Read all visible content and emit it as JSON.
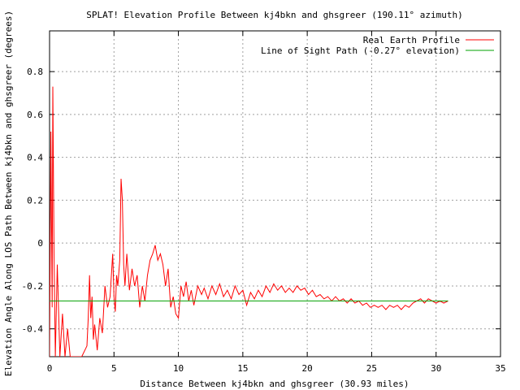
{
  "chart_data": {
    "type": "line",
    "title": "SPLAT! Elevation Profile Between kj4bkn and ghsgreer (190.11° azimuth)",
    "xlabel": "Distance Between kj4bkn and ghsgreer (30.93 miles)",
    "ylabel": "Elevation Angle Along LOS Path Between kj4bkn and ghsgreer (degrees)",
    "xlim": [
      0,
      35
    ],
    "ylim": [
      -0.53,
      0.99
    ],
    "x_ticks": [
      0,
      5,
      10,
      15,
      20,
      25,
      30,
      35
    ],
    "x_tick_labels": [
      "0",
      "5",
      "10",
      "15",
      "20",
      "25",
      "30",
      "35"
    ],
    "y_ticks": [
      -0.4,
      -0.2,
      0,
      0.2,
      0.4,
      0.6,
      0.8
    ],
    "y_tick_labels": [
      "-0.4",
      "-0.2",
      "0",
      "0.2",
      "0.4",
      "0.6",
      "0.8"
    ],
    "grid": true,
    "legend_position": "top-right",
    "series": [
      {
        "name": "Real Earth Profile",
        "color": "#ff0000",
        "points": [
          [
            0.0,
            -0.53
          ],
          [
            0.1,
            0.52
          ],
          [
            0.2,
            -0.3
          ],
          [
            0.25,
            0.73
          ],
          [
            0.35,
            -0.05
          ],
          [
            0.45,
            -0.53
          ],
          [
            0.6,
            -0.1
          ],
          [
            0.8,
            -0.53
          ],
          [
            1.0,
            -0.33
          ],
          [
            1.2,
            -0.53
          ],
          [
            1.4,
            -0.4
          ],
          [
            1.6,
            -0.53
          ],
          [
            2.0,
            -0.53
          ],
          [
            2.5,
            -0.53
          ],
          [
            2.9,
            -0.48
          ],
          [
            3.0,
            -0.35
          ],
          [
            3.1,
            -0.15
          ],
          [
            3.2,
            -0.35
          ],
          [
            3.3,
            -0.25
          ],
          [
            3.4,
            -0.45
          ],
          [
            3.5,
            -0.38
          ],
          [
            3.7,
            -0.5
          ],
          [
            3.9,
            -0.35
          ],
          [
            4.1,
            -0.42
          ],
          [
            4.3,
            -0.2
          ],
          [
            4.5,
            -0.3
          ],
          [
            4.7,
            -0.25
          ],
          [
            4.9,
            -0.05
          ],
          [
            5.0,
            -0.25
          ],
          [
            5.1,
            -0.32
          ],
          [
            5.2,
            -0.15
          ],
          [
            5.3,
            -0.2
          ],
          [
            5.45,
            -0.08
          ],
          [
            5.55,
            0.3
          ],
          [
            5.65,
            0.2
          ],
          [
            5.75,
            -0.1
          ],
          [
            5.85,
            -0.2
          ],
          [
            6.0,
            -0.05
          ],
          [
            6.2,
            -0.22
          ],
          [
            6.4,
            -0.12
          ],
          [
            6.6,
            -0.2
          ],
          [
            6.8,
            -0.15
          ],
          [
            7.0,
            -0.3
          ],
          [
            7.2,
            -0.2
          ],
          [
            7.4,
            -0.27
          ],
          [
            7.6,
            -0.15
          ],
          [
            7.8,
            -0.08
          ],
          [
            8.0,
            -0.05
          ],
          [
            8.2,
            -0.01
          ],
          [
            8.4,
            -0.08
          ],
          [
            8.6,
            -0.05
          ],
          [
            8.8,
            -0.1
          ],
          [
            9.0,
            -0.2
          ],
          [
            9.2,
            -0.12
          ],
          [
            9.4,
            -0.3
          ],
          [
            9.6,
            -0.25
          ],
          [
            9.8,
            -0.33
          ],
          [
            10.0,
            -0.35
          ],
          [
            10.2,
            -0.2
          ],
          [
            10.4,
            -0.25
          ],
          [
            10.6,
            -0.18
          ],
          [
            10.8,
            -0.27
          ],
          [
            11.0,
            -0.22
          ],
          [
            11.2,
            -0.29
          ],
          [
            11.5,
            -0.2
          ],
          [
            11.8,
            -0.24
          ],
          [
            12.0,
            -0.21
          ],
          [
            12.3,
            -0.26
          ],
          [
            12.6,
            -0.2
          ],
          [
            12.9,
            -0.24
          ],
          [
            13.2,
            -0.19
          ],
          [
            13.5,
            -0.25
          ],
          [
            13.8,
            -0.22
          ],
          [
            14.1,
            -0.26
          ],
          [
            14.4,
            -0.2
          ],
          [
            14.7,
            -0.24
          ],
          [
            15.0,
            -0.22
          ],
          [
            15.3,
            -0.29
          ],
          [
            15.6,
            -0.23
          ],
          [
            15.9,
            -0.26
          ],
          [
            16.2,
            -0.22
          ],
          [
            16.5,
            -0.25
          ],
          [
            16.8,
            -0.2
          ],
          [
            17.1,
            -0.23
          ],
          [
            17.4,
            -0.19
          ],
          [
            17.7,
            -0.22
          ],
          [
            18.0,
            -0.2
          ],
          [
            18.3,
            -0.23
          ],
          [
            18.6,
            -0.21
          ],
          [
            18.9,
            -0.23
          ],
          [
            19.2,
            -0.2
          ],
          [
            19.5,
            -0.22
          ],
          [
            19.8,
            -0.21
          ],
          [
            20.1,
            -0.24
          ],
          [
            20.4,
            -0.22
          ],
          [
            20.7,
            -0.25
          ],
          [
            21.0,
            -0.24
          ],
          [
            21.3,
            -0.26
          ],
          [
            21.6,
            -0.25
          ],
          [
            21.9,
            -0.27
          ],
          [
            22.2,
            -0.25
          ],
          [
            22.5,
            -0.27
          ],
          [
            22.8,
            -0.26
          ],
          [
            23.1,
            -0.28
          ],
          [
            23.4,
            -0.26
          ],
          [
            23.7,
            -0.28
          ],
          [
            24.0,
            -0.27
          ],
          [
            24.3,
            -0.29
          ],
          [
            24.6,
            -0.28
          ],
          [
            24.9,
            -0.3
          ],
          [
            25.2,
            -0.29
          ],
          [
            25.5,
            -0.3
          ],
          [
            25.8,
            -0.29
          ],
          [
            26.1,
            -0.31
          ],
          [
            26.4,
            -0.29
          ],
          [
            26.7,
            -0.3
          ],
          [
            27.0,
            -0.29
          ],
          [
            27.3,
            -0.31
          ],
          [
            27.6,
            -0.29
          ],
          [
            27.9,
            -0.3
          ],
          [
            28.2,
            -0.28
          ],
          [
            28.5,
            -0.27
          ],
          [
            28.8,
            -0.26
          ],
          [
            29.1,
            -0.28
          ],
          [
            29.4,
            -0.26
          ],
          [
            29.7,
            -0.27
          ],
          [
            30.0,
            -0.28
          ],
          [
            30.3,
            -0.27
          ],
          [
            30.6,
            -0.28
          ],
          [
            30.93,
            -0.27
          ]
        ]
      },
      {
        "name": "Line of Sight Path (-0.27° elevation)",
        "color": "#00a000",
        "points": [
          [
            0,
            -0.27
          ],
          [
            30.93,
            -0.27
          ]
        ]
      }
    ]
  }
}
